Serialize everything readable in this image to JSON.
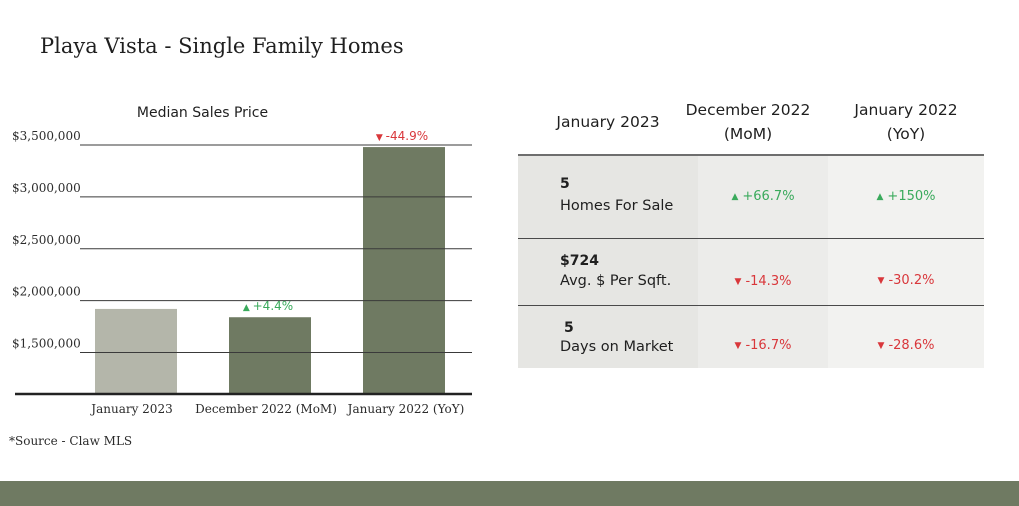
{
  "page": {
    "title": "Playa Vista - Single Family Homes",
    "source": "*Source - Claw MLS"
  },
  "colors": {
    "bar_current": "#b4b6aa",
    "bar_previous": "#6f7a62",
    "axis_line": "#222222",
    "gridline": "#3a3a3a",
    "positive": "#3aaa5c",
    "negative": "#d9373b",
    "footer_band": "#6f7a62"
  },
  "chart_data": {
    "type": "bar",
    "title": "Median Sales Price",
    "categories": [
      "January 2023",
      "December 2022 (MoM)",
      "January 2022 (YoY)"
    ],
    "values": [
      1920000,
      1840000,
      3480000
    ],
    "ylim": [
      1100000,
      3500000
    ],
    "yticks": [
      1500000,
      2000000,
      2500000,
      3000000,
      3500000
    ],
    "ytick_labels": [
      "$1,500,000",
      "$2,000,000",
      "$2,500,000",
      "$3,000,000",
      "$3,500,000"
    ],
    "grid": true,
    "change_labels": [
      {
        "category_index": 1,
        "text": "+4.4%",
        "direction": "up"
      },
      {
        "category_index": 2,
        "text": "-44.9%",
        "direction": "down"
      }
    ]
  },
  "table": {
    "headers": {
      "current": "January 2023",
      "mom_line1": "December 2022",
      "mom_line2": "(MoM)",
      "yoy_line1": "January 2022",
      "yoy_line2": "(YoY)"
    },
    "rows": [
      {
        "value": "5",
        "label": "Homes For Sale",
        "mom": "+66.7%",
        "mom_dir": "up",
        "yoy": "+150%",
        "yoy_dir": "up"
      },
      {
        "value": "$724",
        "label": "Avg. $ Per Sqft.",
        "mom": "-14.3%",
        "mom_dir": "down",
        "yoy": "-30.2%",
        "yoy_dir": "down"
      },
      {
        "value": "5",
        "label": "Days on Market",
        "mom": "-16.7%",
        "mom_dir": "down",
        "yoy": "-28.6%",
        "yoy_dir": "down"
      }
    ]
  }
}
